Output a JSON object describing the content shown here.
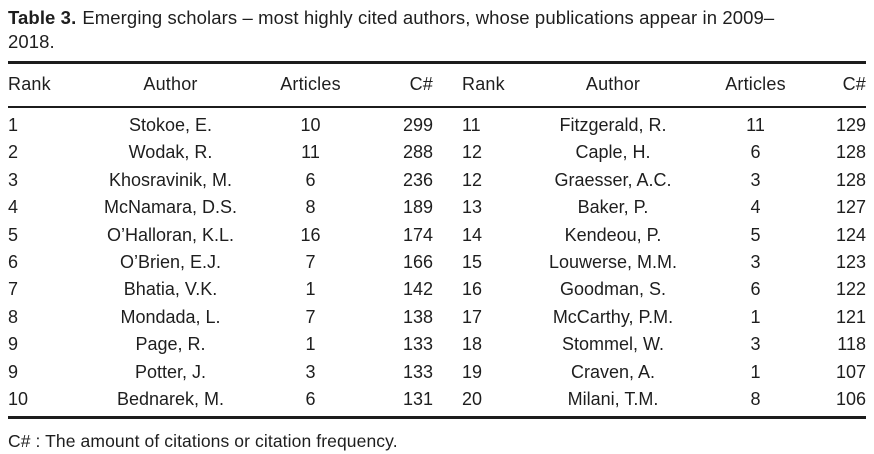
{
  "caption": {
    "label": "Table 3.",
    "line1": "Emerging scholars – most highly cited authors, whose publications appear in 2009–",
    "line2": "2018."
  },
  "table": {
    "columns": [
      "Rank",
      "Author",
      "Articles",
      "C#",
      "Rank",
      "Author",
      "Articles",
      "C#"
    ],
    "rows": [
      [
        "1",
        "Stokoe, E.",
        "10",
        "299",
        "11",
        "Fitzgerald, R.",
        "11",
        "129"
      ],
      [
        "2",
        "Wodak, R.",
        "11",
        "288",
        "12",
        "Caple, H.",
        "6",
        "128"
      ],
      [
        "3",
        "Khosravinik, M.",
        "6",
        "236",
        "12",
        "Graesser, A.C.",
        "3",
        "128"
      ],
      [
        "4",
        "McNamara, D.S.",
        "8",
        "189",
        "13",
        "Baker, P.",
        "4",
        "127"
      ],
      [
        "5",
        "O’Halloran, K.L.",
        "16",
        "174",
        "14",
        "Kendeou, P.",
        "5",
        "124"
      ],
      [
        "6",
        "O’Brien, E.J.",
        "7",
        "166",
        "15",
        "Louwerse, M.M.",
        "3",
        "123"
      ],
      [
        "7",
        "Bhatia, V.K.",
        "1",
        "142",
        "16",
        "Goodman, S.",
        "6",
        "122"
      ],
      [
        "8",
        "Mondada, L.",
        "7",
        "138",
        "17",
        "McCarthy, P.M.",
        "1",
        "121"
      ],
      [
        "9",
        "Page, R.",
        "1",
        "133",
        "18",
        "Stommel, W.",
        "3",
        "118"
      ],
      [
        "9",
        "Potter, J.",
        "3",
        "133",
        "19",
        "Craven, A.",
        "1",
        "107"
      ],
      [
        "10",
        "Bednarek, M.",
        "6",
        "131",
        "20",
        "Milani, T.M.",
        "8",
        "106"
      ]
    ]
  },
  "footnote": "C# : The amount of citations or citation frequency.",
  "colors": {
    "text": "#1e1e1e",
    "rule": "#1c1c1c",
    "background": "#ffffff"
  }
}
